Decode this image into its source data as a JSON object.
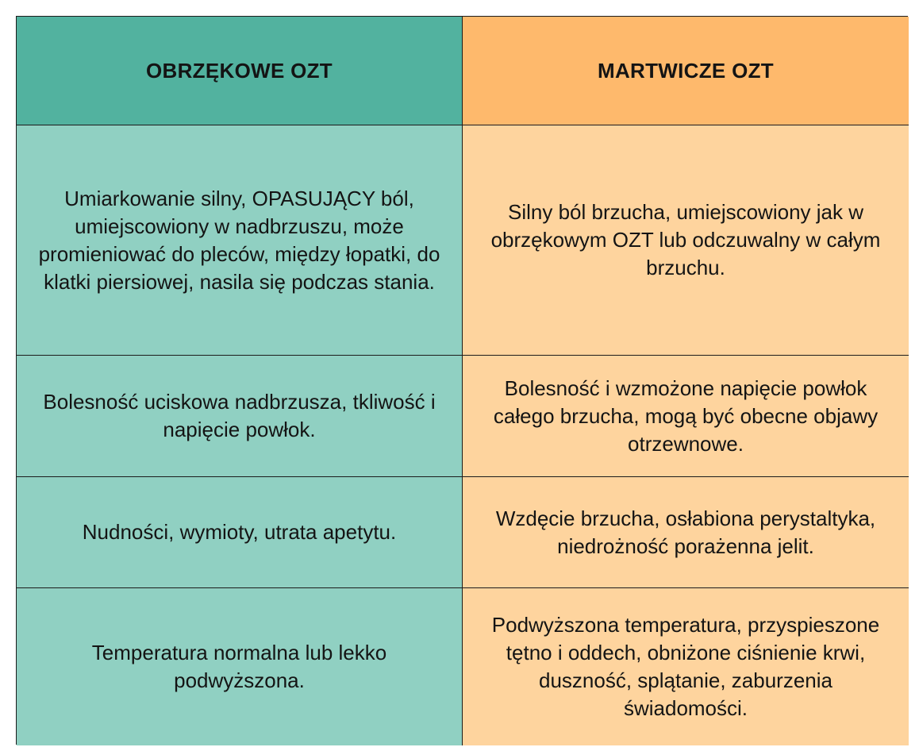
{
  "colors": {
    "header_left_bg": "#52b29f",
    "header_right_bg": "#feb96c",
    "body_left_bg": "#90d0c2",
    "body_right_bg": "#fed49e",
    "border": "#1c1c1c"
  },
  "table": {
    "headers": [
      "OBRZĘKOWE OZT",
      "MARTWICZE OZT"
    ],
    "rows": [
      {
        "left": "Umiarkowanie silny, OPASUJĄCY ból, umiejscowiony w nadbrzuszu, może promieniować do pleców, między łopatki, do klatki piersiowej, nasila się podczas stania.",
        "right": "Silny ból brzucha, umiejscowiony jak w obrzękowym OZT lub odczuwalny w całym brzuchu."
      },
      {
        "left": "Bolesność uciskowa nadbrzusza, tkliwość i napięcie powłok.",
        "right": "Bolesność i wzmożone napięcie powłok całego brzucha, mogą być obecne objawy otrzewnowe."
      },
      {
        "left": "Nudności, wymioty, utrata apetytu.",
        "right": "Wzdęcie brzucha, osłabiona perystaltyka, niedrożność porażenna jelit."
      },
      {
        "left": "Temperatura normalna lub lekko podwyższona.",
        "right": "Podwyższona temperatura, przyspieszone tętno i oddech, obniżone ciśnienie krwi, duszność, splątanie, zaburzenia świadomości."
      }
    ]
  }
}
